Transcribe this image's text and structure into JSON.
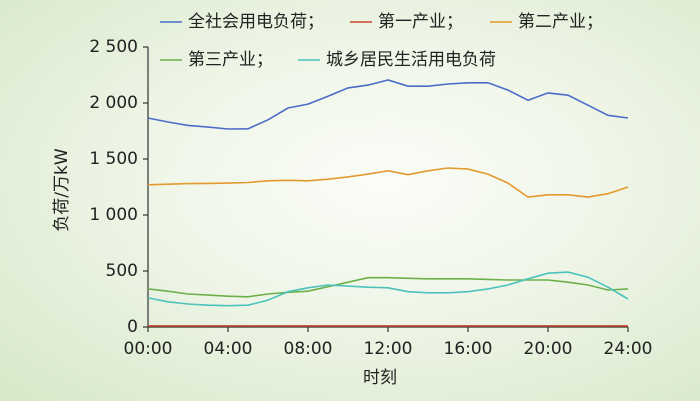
{
  "chart_data": {
    "type": "line",
    "x_label": "时刻",
    "y_label": "负荷/万kW",
    "x": [
      0,
      1,
      2,
      3,
      4,
      5,
      6,
      7,
      8,
      9,
      10,
      11,
      12,
      13,
      14,
      15,
      16,
      17,
      18,
      19,
      20,
      21,
      22,
      23,
      24
    ],
    "xlim": [
      0,
      24
    ],
    "xticks": [
      {
        "value": 0,
        "label": "00:00"
      },
      {
        "value": 4,
        "label": "04:00"
      },
      {
        "value": 8,
        "label": "08:00"
      },
      {
        "value": 12,
        "label": "12:00"
      },
      {
        "value": 16,
        "label": "16:00"
      },
      {
        "value": 20,
        "label": "20:00"
      },
      {
        "value": 24,
        "label": "24:00"
      }
    ],
    "ylim": [
      0,
      2500
    ],
    "yticks": [
      0,
      500,
      {
        "value": 1000,
        "label": "1 000"
      },
      {
        "value": 1500,
        "label": "1 500"
      },
      {
        "value": 2000,
        "label": "2 000"
      },
      {
        "value": 2500,
        "label": "2 500"
      }
    ],
    "series": [
      {
        "name": "全社会用电负荷；",
        "color": "#4b6cc9",
        "values": [
          1866,
          1830,
          1800,
          1785,
          1768,
          1770,
          1850,
          1955,
          1990,
          2060,
          2135,
          2160,
          2205,
          2150,
          2150,
          2170,
          2180,
          2180,
          2115,
          2025,
          2090,
          2070,
          1980,
          1890,
          1866
        ]
      },
      {
        "name": "第一产业；",
        "color": "#c8452f",
        "values": [
          10,
          10,
          10,
          10,
          10,
          10,
          10,
          10,
          10,
          10,
          10,
          10,
          10,
          10,
          10,
          10,
          10,
          10,
          10,
          10,
          10,
          10,
          10,
          10,
          10
        ]
      },
      {
        "name": "第二产业；",
        "color": "#e39a2e",
        "values": [
          1270,
          1275,
          1280,
          1282,
          1285,
          1290,
          1305,
          1310,
          1305,
          1320,
          1340,
          1365,
          1395,
          1360,
          1395,
          1420,
          1410,
          1365,
          1285,
          1160,
          1180,
          1180,
          1160,
          1190,
          1250
        ]
      },
      {
        "name": "第三产业；",
        "color": "#6db04b",
        "values": [
          340,
          320,
          295,
          285,
          275,
          270,
          295,
          310,
          320,
          360,
          400,
          440,
          440,
          435,
          430,
          430,
          430,
          425,
          420,
          420,
          420,
          400,
          375,
          330,
          340
        ]
      },
      {
        "name": "城乡居民生活用电负荷",
        "color": "#4cc2bd",
        "values": [
          260,
          225,
          205,
          195,
          190,
          195,
          240,
          315,
          350,
          375,
          365,
          355,
          350,
          315,
          305,
          305,
          315,
          340,
          375,
          430,
          480,
          490,
          445,
          355,
          250
        ]
      }
    ]
  }
}
